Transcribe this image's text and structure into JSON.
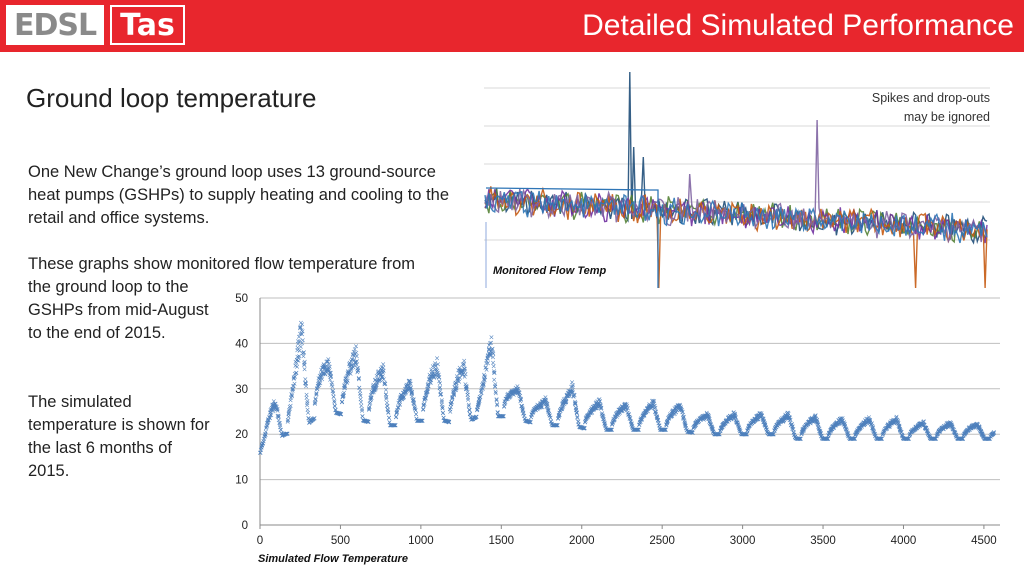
{
  "header": {
    "logo_left": "EDSL",
    "logo_right": "Tas",
    "title": "Detailed Simulated Performance"
  },
  "slide": {
    "title": "Ground loop temperature",
    "paragraph1": "One New Change’s ground loop uses 13 ground-source heat pumps (GSHPs) to supply heating and cooling to the retail and office systems.",
    "paragraph2": "These graphs show monitored flow temperature from the ground loop to the GSHPs from mid-August to the end of 2015.",
    "paragraph3": "The simulated temperature is shown for the last 6 months of 2015.",
    "note_line1": "Spikes and drop-outs",
    "note_line2": "may be ignored"
  },
  "chart_data": [
    {
      "type": "line",
      "title": "",
      "label": "Monitored Flow Temp",
      "series_colors": [
        "#1f4e79",
        "#548235",
        "#7030a0",
        "#c55a11",
        "#8064a2",
        "#2e75b6"
      ],
      "grid": true,
      "note": "Multiple overlapping monitored series, no axes labels shown"
    },
    {
      "type": "scatter",
      "label": "Simulated Flow Temperature",
      "xlim": [
        0,
        4600
      ],
      "ylim": [
        0,
        50
      ],
      "x_ticks": [
        0,
        500,
        1000,
        1500,
        2000,
        2500,
        3000,
        3500,
        4000,
        4500
      ],
      "y_ticks": [
        0,
        10,
        20,
        30,
        40,
        50
      ],
      "grid": true,
      "marker_color": "#4f81bd",
      "envelope": [
        {
          "x": 0,
          "low": 16,
          "high": 18
        },
        {
          "x": 50,
          "low": 18,
          "high": 26
        },
        {
          "x": 150,
          "low": 20,
          "high": 32
        },
        {
          "x": 250,
          "low": 21,
          "high": 46
        },
        {
          "x": 350,
          "low": 24,
          "high": 40
        },
        {
          "x": 450,
          "low": 25,
          "high": 36
        },
        {
          "x": 550,
          "low": 24,
          "high": 40
        },
        {
          "x": 650,
          "low": 23,
          "high": 39
        },
        {
          "x": 750,
          "low": 22,
          "high": 36
        },
        {
          "x": 850,
          "low": 22,
          "high": 33
        },
        {
          "x": 950,
          "low": 23,
          "high": 32
        },
        {
          "x": 1050,
          "low": 23,
          "high": 38
        },
        {
          "x": 1150,
          "low": 23,
          "high": 36
        },
        {
          "x": 1250,
          "low": 22,
          "high": 38
        },
        {
          "x": 1350,
          "low": 24,
          "high": 32
        },
        {
          "x": 1450,
          "low": 24,
          "high": 44
        },
        {
          "x": 1550,
          "low": 24,
          "high": 32
        },
        {
          "x": 1650,
          "low": 23,
          "high": 30
        },
        {
          "x": 1750,
          "low": 22,
          "high": 28
        },
        {
          "x": 1850,
          "low": 22,
          "high": 30
        },
        {
          "x": 1950,
          "low": 22,
          "high": 32
        },
        {
          "x": 2050,
          "low": 21,
          "high": 28
        },
        {
          "x": 2150,
          "low": 21,
          "high": 28
        },
        {
          "x": 2300,
          "low": 21,
          "high": 27
        },
        {
          "x": 2450,
          "low": 21,
          "high": 28
        },
        {
          "x": 2600,
          "low": 21,
          "high": 27
        },
        {
          "x": 2750,
          "low": 20,
          "high": 25
        },
        {
          "x": 2900,
          "low": 20,
          "high": 25
        },
        {
          "x": 3050,
          "low": 20,
          "high": 25
        },
        {
          "x": 3200,
          "low": 20,
          "high": 25
        },
        {
          "x": 3350,
          "low": 19,
          "high": 25
        },
        {
          "x": 3500,
          "low": 19,
          "high": 24
        },
        {
          "x": 3650,
          "low": 19,
          "high": 24
        },
        {
          "x": 3800,
          "low": 19,
          "high": 24
        },
        {
          "x": 3950,
          "low": 19,
          "high": 24
        },
        {
          "x": 4100,
          "low": 19,
          "high": 23
        },
        {
          "x": 4250,
          "low": 19,
          "high": 23
        },
        {
          "x": 4400,
          "low": 19,
          "high": 23
        },
        {
          "x": 4550,
          "low": 19,
          "high": 22
        }
      ]
    }
  ]
}
